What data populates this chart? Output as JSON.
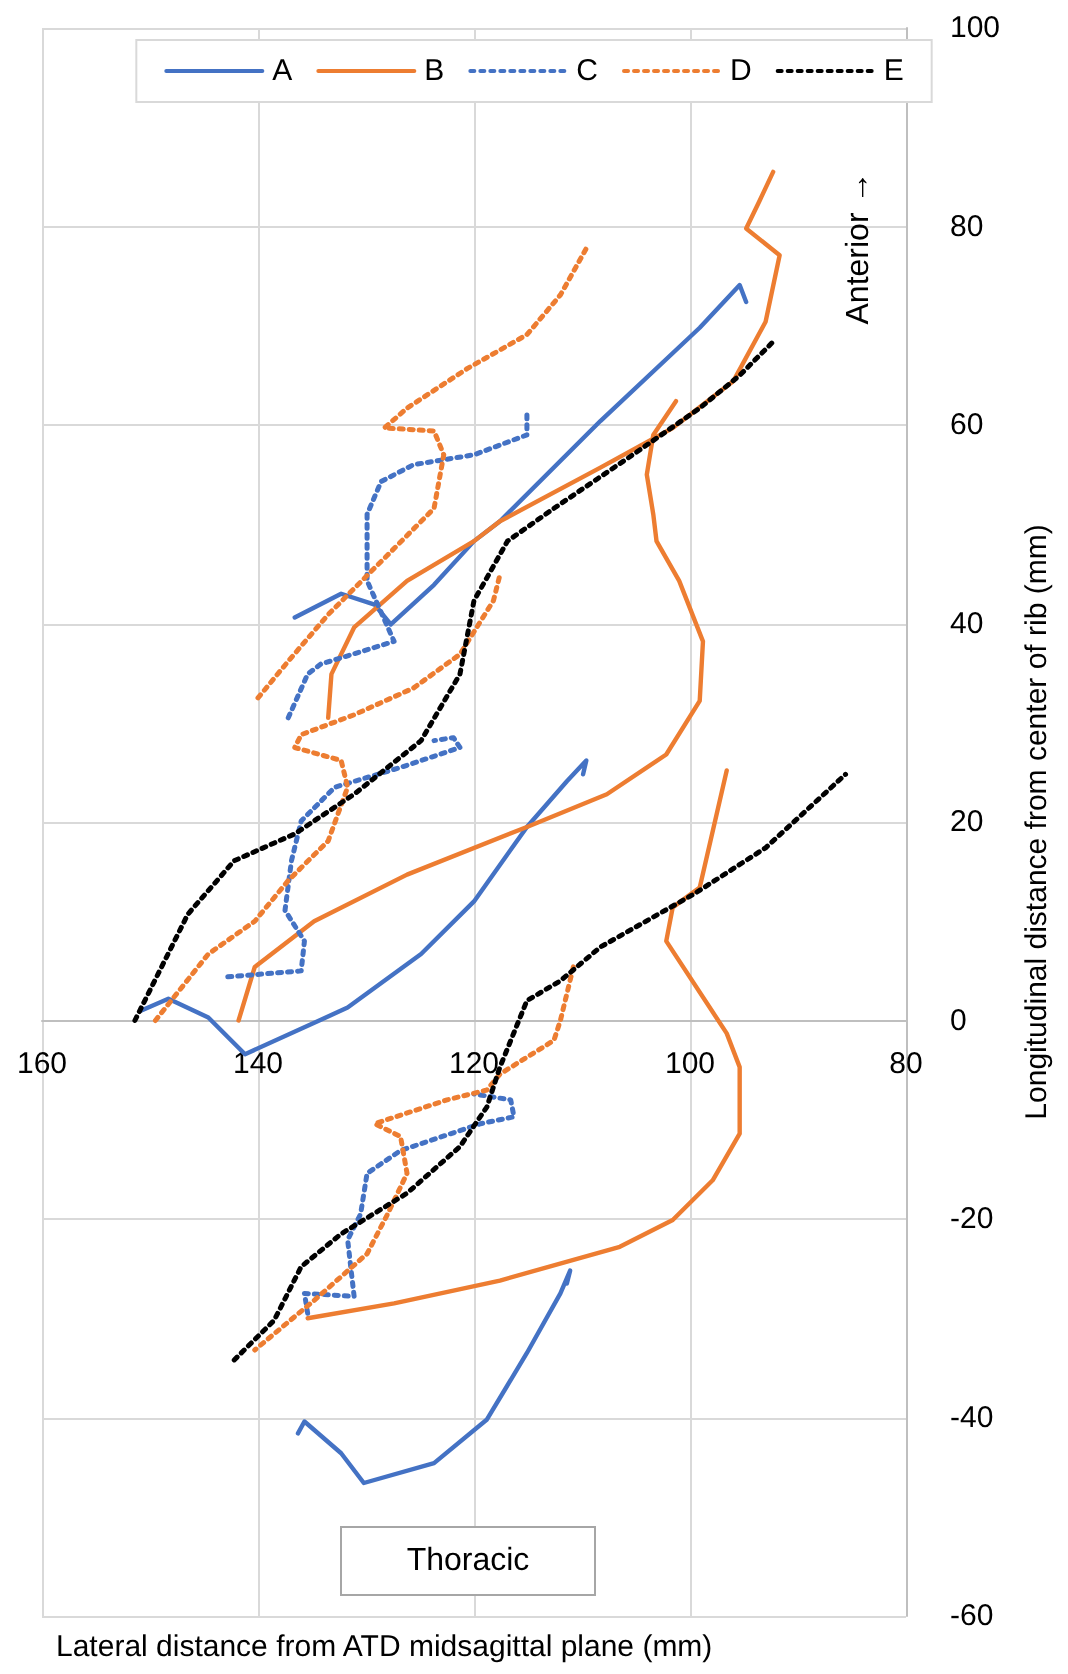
{
  "chart_data": {
    "type": "line",
    "xlabel": "Lateral distance from ATD midsagittal plane (mm)",
    "ylabel": "Longitudinal distance from center of rib (mm)",
    "annotations": [
      "Anterior →",
      "Thoracic"
    ],
    "xlim": [
      160,
      80
    ],
    "xticks": [
      160,
      140,
      120,
      100,
      80
    ],
    "ylim": [
      -60,
      100
    ],
    "yticks": [
      -60,
      -40,
      -20,
      0,
      20,
      40,
      60,
      80,
      100
    ],
    "grid": true,
    "legend": "top",
    "marker": "none",
    "series": [
      {
        "name": "A",
        "color": "#4472c4",
        "line_style": "solid",
        "x": [
          150.8,
          148.3,
          144.6,
          141.2,
          131.7,
          124.9,
          120,
          115.1,
          111.4,
          109.6,
          109.9,
          null,
          136.6,
          132.3,
          129.2,
          127.7,
          123.7,
          120,
          117.6,
          108.3,
          99.1,
          95.4,
          94.8,
          null,
          136.3,
          135.7,
          132.3,
          130.2,
          123.7,
          118.8,
          115.1,
          112,
          111.1,
          111.4
        ],
        "values": [
          1,
          2.2,
          0.3,
          -3.4,
          1.3,
          6.7,
          12,
          19.5,
          24.1,
          26.2,
          24.8,
          null,
          40.6,
          43,
          41.9,
          39.9,
          43.9,
          48.3,
          50.3,
          60.4,
          69.8,
          74.1,
          72.4,
          null,
          -41.6,
          -40.4,
          -43.6,
          -46.6,
          -44.6,
          -40.2,
          -33.5,
          -27.5,
          -25.2,
          -26.5
        ]
      },
      {
        "name": "B",
        "color": "#ed7d31",
        "line_style": "solid",
        "x": [
          141.8,
          140.3,
          134.8,
          126.2,
          115.1,
          107.7,
          102.2,
          99.1,
          98.8,
          101,
          103.1,
          103.4,
          104,
          103.4,
          101.3,
          null,
          133.5,
          133.2,
          131.1,
          126.2,
          120,
          117.6,
          108.3,
          101.6,
          96,
          93,
          91.7,
          94.8,
          93.6,
          92.3,
          null,
          96.6,
          99.1,
          101.6,
          102.2,
          96.6,
          95.4,
          95.4,
          97.9,
          101.6,
          106.5,
          117.6,
          127.4,
          135.4
        ],
        "values": [
          0,
          5.4,
          10,
          14.7,
          19.5,
          22.8,
          26.8,
          32.2,
          38.2,
          44.3,
          48.3,
          51,
          55,
          59,
          62.4,
          null,
          30.5,
          34.9,
          39.6,
          44.3,
          48.3,
          50.3,
          55.7,
          59.7,
          64.4,
          70.4,
          77.1,
          79.8,
          82.5,
          85.5,
          null,
          25.2,
          13.4,
          11.4,
          8,
          -1.3,
          -4.7,
          -11.4,
          -16.1,
          -20.1,
          -22.8,
          -26.2,
          -28.5,
          -30
        ]
      },
      {
        "name": "C",
        "color": "#4472c4",
        "line_style": "dotted",
        "x": [
          137.2,
          135.4,
          134.2,
          127.4,
          129.9,
          129.9,
          129.9,
          128.6,
          125.6,
          120,
          115.1,
          115.1,
          null,
          142.8,
          136,
          135.7,
          137.5,
          136.9,
          136,
          132.9,
          126.8,
          121.3,
          121.9,
          123.7,
          null,
          135.4,
          135.7,
          131.1,
          131.7,
          130.5,
          129.9,
          126.8,
          119.4,
          116.3,
          116.6,
          120
        ],
        "values": [
          30.5,
          34.9,
          35.9,
          38.2,
          44.3,
          48.3,
          51,
          54.3,
          56,
          57,
          59,
          61,
          null,
          4.4,
          5,
          8,
          11.1,
          16.1,
          20.1,
          23.5,
          25.5,
          27.5,
          28.5,
          28.2,
          null,
          -29.5,
          -27.5,
          -27.8,
          -22.1,
          -19.5,
          -15.4,
          -13.1,
          -10.4,
          -9.7,
          -8,
          -7.4
        ]
      },
      {
        "name": "D",
        "color": "#ed7d31",
        "line_style": "dotted",
        "x": [
          140,
          137.2,
          133.5,
          129.2,
          128,
          123.7,
          122.8,
          123.7,
          128.3,
          126.2,
          120.6,
          115.1,
          112,
          109.6,
          null,
          149.5,
          144.6,
          140.3,
          137.2,
          133.5,
          131.7,
          132.3,
          136.6,
          136,
          131.1,
          125.6,
          121.3,
          118.2,
          117.6,
          null,
          110.8,
          112,
          112.6,
          117.6,
          118.8,
          122.5,
          129.2,
          126.8,
          126.2,
          128,
          129.9,
          134.8,
          140.3
        ],
        "values": [
          32.5,
          36.2,
          40.9,
          45.6,
          46.9,
          51.6,
          57,
          59.4,
          59.7,
          61.7,
          65.7,
          69.1,
          73.1,
          77.8,
          null,
          0,
          6.7,
          10,
          14.1,
          18.1,
          23.5,
          26.2,
          27.5,
          28.8,
          30.8,
          33.5,
          36.9,
          42.3,
          44.9,
          null,
          5.4,
          0,
          -2,
          -5.4,
          -7,
          -8,
          -10.4,
          -11.7,
          -15.4,
          -19.5,
          -23.5,
          -28.2,
          -33.2
        ]
      },
      {
        "name": "E",
        "color": "#000000",
        "line_style": "dotted",
        "x": [
          151.4,
          146.5,
          142.2,
          136.6,
          131.1,
          124.9,
          121.3,
          120,
          116.9,
          112.6,
          105.3,
          99.1,
          95.4,
          92.3,
          null,
          142.2,
          138.5,
          136,
          132.3,
          126.2,
          121.3,
          118.8,
          117.6,
          115.1,
          112,
          108.3,
          99.7,
          93,
          85.6
        ],
        "values": [
          0,
          10.7,
          16.1,
          18.8,
          22.8,
          28.2,
          34.9,
          42.3,
          48.3,
          51.6,
          57,
          61.7,
          65,
          68.4,
          null,
          -34.2,
          -30.2,
          -24.8,
          -21.5,
          -17.4,
          -12.7,
          -8.7,
          -4.7,
          2,
          4,
          7.4,
          12.7,
          17.4,
          24.8
        ]
      }
    ]
  }
}
